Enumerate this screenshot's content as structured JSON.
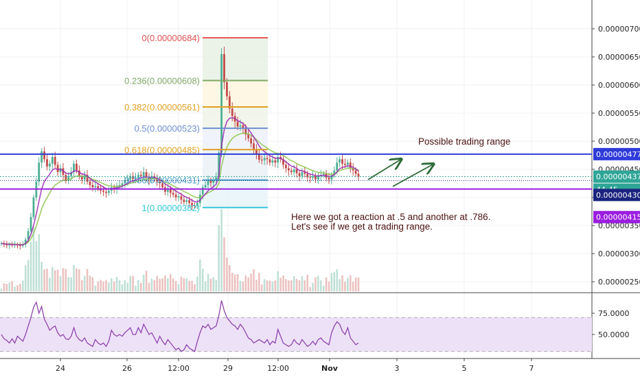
{
  "colors": {
    "candle_up": "#4caf93",
    "candle_down": "#c24a48",
    "ema_fast": "#9c27b0",
    "ema_slow": "#8bc34a",
    "rsi_line": "#8e44ad",
    "rsi_band": "#ede1f7",
    "blue_line": "#2f3bd9",
    "purple_line": "#9b1ee0",
    "current_price_tag": "#2ea597",
    "arrow": "#2e6b38",
    "note_text": "#4a1010"
  },
  "chart_data": [
    {
      "type": "candlestick",
      "y_axis": {
        "ticks": [
          "0.00000250",
          "0.00000300",
          "0.00000350",
          "0.00000400",
          "0.00000450",
          "0.00000500",
          "0.00000550",
          "0.00000600",
          "0.00000650",
          "0.00000700"
        ],
        "range": [
          2.35e-06,
          7.2e-06
        ]
      },
      "x_axis": {
        "ticks": [
          "24",
          "26",
          "12:00",
          "29",
          "12:00",
          "Nov",
          "3",
          "5",
          "7"
        ]
      },
      "fibonacci": [
        {
          "label": "0(0.00000684)",
          "price": 6.84e-06,
          "color": "#e05252"
        },
        {
          "label": "0.236(0.00000608)",
          "price": 6.08e-06,
          "color": "#7fa865"
        },
        {
          "label": "0.382(0.00000561)",
          "price": 5.61e-06,
          "color": "#e0a020"
        },
        {
          "label": "0.5(0.00000523)",
          "price": 5.23e-06,
          "color": "#6d8fd0"
        },
        {
          "label": "0.618(0.00000485)",
          "price": 4.85e-06,
          "color": "#e0a020"
        },
        {
          "label": "0.786(0.00000431)",
          "price": 4.31e-06,
          "color": "#4aa0c8"
        },
        {
          "label": "1(0.00000382)",
          "price": 3.82e-06,
          "color": "#30c8d8"
        }
      ],
      "horizontal_lines": [
        {
          "name": "resistance",
          "price": 4.77e-06,
          "label": "0.00000477"
        },
        {
          "name": "support",
          "price": 4.15e-06,
          "label": "0.00000415"
        }
      ],
      "price_tags": [
        {
          "name": "current",
          "label": "0.00000437",
          "price": 4.37e-06
        },
        {
          "name": "countdown",
          "label": "44:45"
        },
        {
          "name": "line",
          "label": "0.00000430",
          "price": 4.3e-06
        }
      ],
      "close_series": [
        3.18e-06,
        3.16e-06,
        3.15e-06,
        3.16e-06,
        3.15e-06,
        3.16e-06,
        3.15e-06,
        3.14e-06,
        3.16e-06,
        3.25e-06,
        3.4e-06,
        3.65e-06,
        4e-06,
        4.28e-06,
        4.62e-06,
        4.82e-06,
        4.68e-06,
        4.55e-06,
        4.6e-06,
        4.72e-06,
        4.58e-06,
        4.45e-06,
        4.52e-06,
        4.4e-06,
        4.3e-06,
        4.38e-06,
        4.45e-06,
        4.6e-06,
        4.48e-06,
        4.38e-06,
        4.32e-06,
        4.4e-06,
        4.28e-06,
        4.22e-06,
        4.18e-06,
        4.2e-06,
        4.16e-06,
        4.12e-06,
        4.1e-06,
        4.08e-06,
        4.12e-06,
        4.18e-06,
        4.15e-06,
        4.2e-06,
        4.22e-06,
        4.25e-06,
        4.3e-06,
        4.32e-06,
        4.38e-06,
        4.33e-06,
        4.35e-06,
        4.4e-06,
        4.38e-06,
        4.45e-06,
        4.36e-06,
        4.32e-06,
        4.38e-06,
        4.34e-06,
        4.28e-06,
        4.25e-06,
        4.18e-06,
        4.1e-06,
        4.15e-06,
        4.08e-06,
        4.05e-06,
        4e-06,
        4.02e-06,
        3.96e-06,
        3.92e-06,
        3.95e-06,
        3.9e-06,
        3.86e-06,
        3.85e-06,
        3.9e-06,
        4.05e-06,
        4.18e-06,
        4.22e-06,
        4.3e-06,
        4.26e-06,
        4.3e-06,
        4.36e-06,
        4.8e-06,
        6.55e-06,
        6.05e-06,
        5.8e-06,
        5.58e-06,
        5.45e-06,
        5.35e-06,
        5.26e-06,
        5.28e-06,
        5.22e-06,
        5.12e-06,
        5.05e-06,
        4.96e-06,
        4.85e-06,
        4.78e-06,
        4.67e-06,
        4.66e-06,
        4.7e-06,
        4.68e-06,
        4.62e-06,
        4.66e-06,
        4.62e-06,
        4.72e-06,
        4.68e-06,
        4.58e-06,
        4.52e-06,
        4.48e-06,
        4.45e-06,
        4.5e-06,
        4.43e-06,
        4.38e-06,
        4.45e-06,
        4.42e-06,
        4.36e-06,
        4.35e-06,
        4.38e-06,
        4.32e-06,
        4.38e-06,
        4.4e-06,
        4.42e-06,
        4.35e-06,
        4.32e-06,
        4.4e-06,
        4.48e-06,
        4.62e-06,
        4.68e-06,
        4.6e-06,
        4.58e-06,
        4.62e-06,
        4.52e-06,
        4.48e-06,
        4.42e-06,
        4.37e-06
      ],
      "annotations": [
        {
          "name": "possible-trading-range",
          "text": "Possible trading range"
        },
        {
          "name": "reaction-note-line1",
          "text": "Here we got a reaction at .5 and another at .786."
        },
        {
          "name": "reaction-note-line2",
          "text": "Let's see if we get a trading range."
        }
      ]
    },
    {
      "type": "line",
      "indicator": "RSI",
      "y_axis": {
        "ticks": [
          "50.0000",
          "75.0000"
        ],
        "range": [
          26,
          92
        ],
        "band": [
          30,
          70
        ]
      },
      "values": [
        50,
        45,
        43,
        40,
        45,
        40,
        48,
        45,
        42,
        50,
        60,
        70,
        82,
        88,
        75,
        83,
        68,
        62,
        55,
        58,
        60,
        52,
        48,
        50,
        45,
        44,
        48,
        58,
        48,
        44,
        42,
        46,
        40,
        38,
        36,
        44,
        40,
        38,
        40,
        36,
        42,
        55,
        50,
        48,
        50,
        48,
        52,
        55,
        58,
        50,
        50,
        58,
        52,
        62,
        56,
        50,
        52,
        46,
        40,
        48,
        42,
        38,
        44,
        40,
        36,
        32,
        34,
        30,
        32,
        38,
        34,
        32,
        30,
        42,
        52,
        60,
        58,
        62,
        56,
        58,
        60,
        72,
        90,
        78,
        70,
        66,
        62,
        60,
        56,
        62,
        58,
        52,
        46,
        44,
        40,
        42,
        44,
        42,
        40,
        44,
        38,
        42,
        40,
        56,
        48,
        40,
        38,
        36,
        38,
        44,
        40,
        38,
        44,
        40,
        36,
        38,
        42,
        38,
        44,
        46,
        42,
        40,
        38,
        52,
        60,
        65,
        62,
        54,
        50,
        58,
        46,
        42,
        38,
        40
      ]
    }
  ]
}
